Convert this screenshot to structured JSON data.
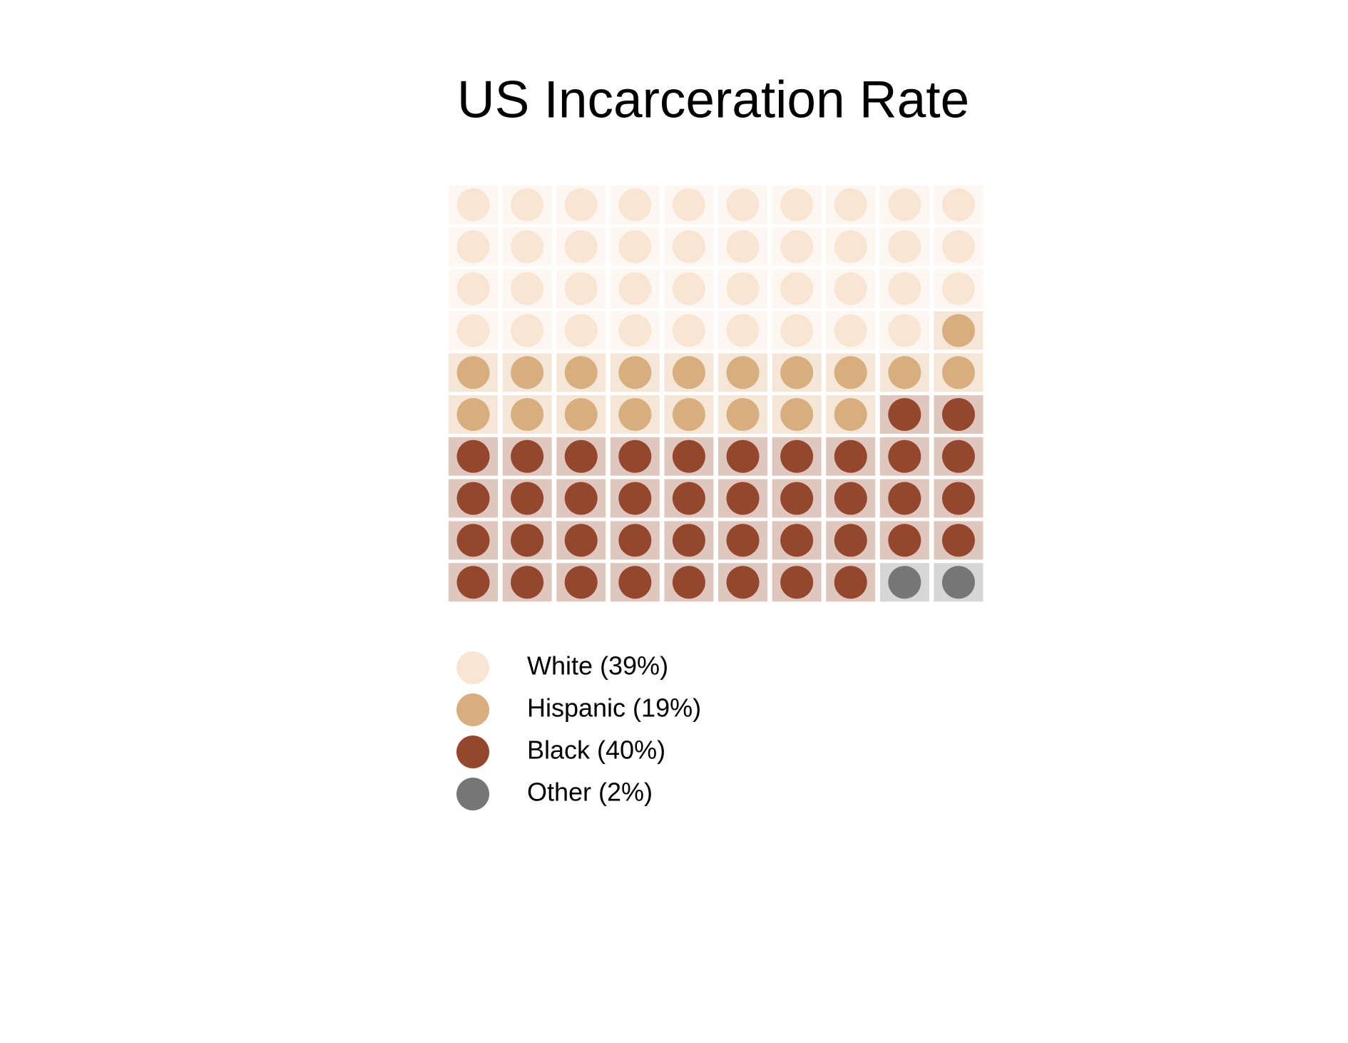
{
  "chart_data": {
    "type": "waffle",
    "title": "US Incarceration Rate",
    "series": [
      {
        "name": "White (39%)",
        "color": "#f8e6d3",
        "value": 39
      },
      {
        "name": "Hispanic (19%)",
        "color": "#d9ae7e",
        "value": 19
      },
      {
        "name": "Black (40%)",
        "color": "#94472c",
        "value": 40
      },
      {
        "name": "Other (2%)",
        "color": "#767676",
        "value": 2
      }
    ]
  }
}
